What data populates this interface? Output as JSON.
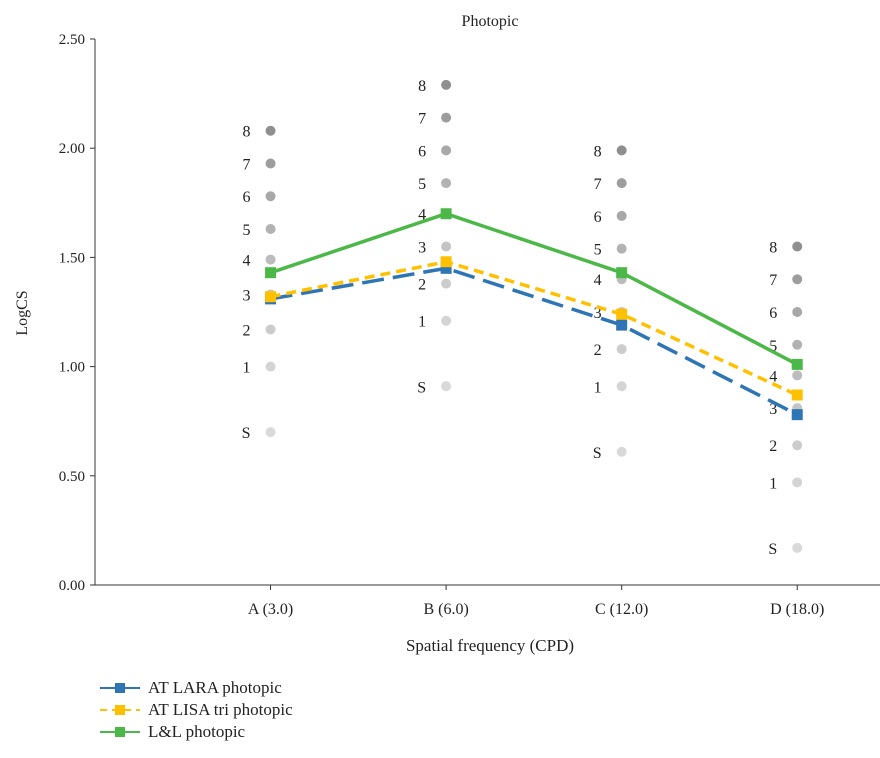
{
  "chart_data": {
    "type": "line",
    "title": "Photopic",
    "xlabel": "Spatial frequency (CPD)",
    "ylabel": "LogCS",
    "ylim": [
      0,
      2.5
    ],
    "yticks": [
      "0.00",
      "0.50",
      "1.00",
      "1.50",
      "2.00",
      "2.50"
    ],
    "categories": [
      "A (3.0)",
      "B (6.0)",
      "C (12.0)",
      "D (18.0)"
    ],
    "series": [
      {
        "name": "AT LARA photopic",
        "color": "#2e75b6",
        "dash": "long-dash",
        "values": [
          1.31,
          1.45,
          1.19,
          0.78
        ]
      },
      {
        "name": "AT LISA tri photopic",
        "color": "#ffc000",
        "dash": "dash",
        "values": [
          1.32,
          1.48,
          1.24,
          0.87
        ]
      },
      {
        "name": "L&L photopic",
        "color": "#4cb848",
        "dash": "solid",
        "values": [
          1.43,
          1.7,
          1.43,
          1.01
        ]
      }
    ],
    "grade_labels": [
      "S",
      "1",
      "2",
      "3",
      "4",
      "5",
      "6",
      "7",
      "8"
    ],
    "grade_levels": [
      {
        "category": "A (3.0)",
        "values": [
          0.7,
          1.0,
          1.17,
          1.33,
          1.49,
          1.63,
          1.78,
          1.93,
          2.08
        ]
      },
      {
        "category": "B (6.0)",
        "values": [
          0.91,
          1.21,
          1.38,
          1.55,
          1.7,
          1.84,
          1.99,
          2.14,
          2.29
        ]
      },
      {
        "category": "C (12.0)",
        "values": [
          0.61,
          0.91,
          1.08,
          1.25,
          1.4,
          1.54,
          1.69,
          1.84,
          1.99
        ]
      },
      {
        "category": "D (18.0)",
        "values": [
          0.17,
          0.47,
          0.64,
          0.81,
          0.96,
          1.1,
          1.25,
          1.4,
          1.55
        ]
      }
    ],
    "grade_colors": [
      "#d9d9d9",
      "#d4d4d4",
      "#cccccc",
      "#c4c4c4",
      "#bcbcbc",
      "#b2b2b2",
      "#a8a8a8",
      "#9d9d9d",
      "#8f8f8f"
    ],
    "grid": false,
    "legend_position": "bottom-left"
  },
  "legend": {
    "items": [
      {
        "label": "AT LARA photopic"
      },
      {
        "label": "AT LISA tri photopic"
      },
      {
        "label": "L&L photopic"
      }
    ]
  }
}
